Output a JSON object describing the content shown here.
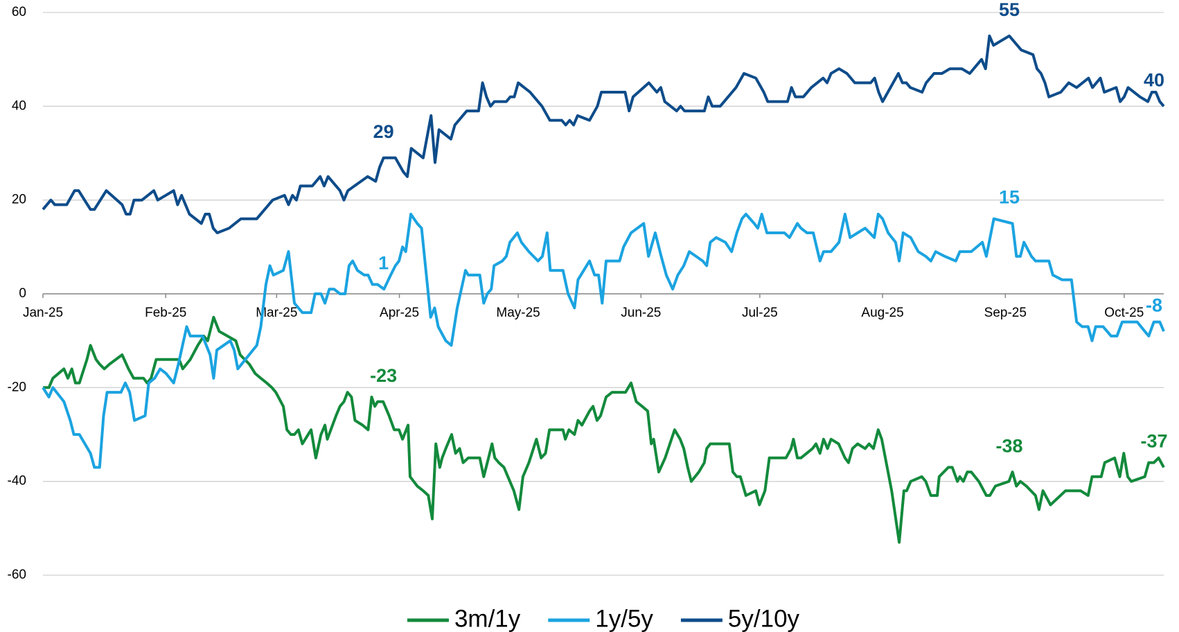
{
  "chart_data": {
    "type": "line",
    "xlim": [
      0,
      283
    ],
    "xticks": [
      {
        "value": 0,
        "label": "Jan-25"
      },
      {
        "value": 31,
        "label": "Feb-25"
      },
      {
        "value": 59,
        "label": "Mar-25"
      },
      {
        "value": 90,
        "label": "Apr-25"
      },
      {
        "value": 120,
        "label": "May-25"
      },
      {
        "value": 151,
        "label": "Jun-25"
      },
      {
        "value": 181,
        "label": "Jul-25"
      },
      {
        "value": 212,
        "label": "Aug-25"
      },
      {
        "value": 243,
        "label": "Sep-25"
      },
      {
        "value": 273,
        "label": "Oct-25"
      }
    ],
    "ylim": [
      -60,
      60
    ],
    "yticks": [
      -60,
      -40,
      -20,
      0,
      20,
      40,
      60
    ],
    "grid": true,
    "legend": "bottom",
    "series": [
      {
        "name": "3m/1y",
        "color": "#138a3c",
        "x": [
          0,
          1.5,
          2.5,
          5.3,
          6.3,
          7.3,
          8.2,
          9.2,
          11.1,
          12,
          13.4,
          14.3,
          15.5,
          16.8,
          20,
          21.6,
          22.9,
          25.4,
          26.3,
          27.3,
          28.6,
          34.4,
          35.3,
          37.2,
          39.1,
          40.6,
          41.6,
          43.1,
          44.5,
          48.7,
          49.8,
          52.1,
          53.6,
          55,
          56.5,
          57.8,
          58.8,
          60.7,
          61.6,
          62.6,
          63.5,
          64.5,
          65.5,
          67.7,
          68.9,
          70.2,
          71.2,
          71.8,
          74,
          75,
          76,
          76.9,
          77.9,
          78.8,
          80.7,
          82.1,
          83,
          83.8,
          84.5,
          85.9,
          87.4,
          88.7,
          89.9,
          90.8,
          92.2,
          92.7,
          94.5,
          96,
          97.3,
          98.3,
          99.2,
          100.2,
          100.8,
          101.7,
          103.2,
          104.2,
          105.2,
          106.1,
          107.4,
          110.3,
          111.3,
          112.2,
          113.4,
          114.1,
          115.1,
          116.4,
          117.9,
          118.9,
          120.2,
          121.2,
          122.7,
          124.6,
          125.8,
          126.9,
          127.9,
          131.3,
          131.9,
          132.8,
          134.2,
          135.1,
          136.1,
          138,
          138.9,
          139.9,
          140.8,
          142.2,
          143.7,
          147.1,
          148.5,
          149.8,
          151.3,
          152.7,
          153.6,
          154.2,
          155.5,
          157.1,
          159.5,
          160.9,
          161.8,
          162.8,
          163.7,
          165.6,
          167,
          167.6,
          168.5,
          173.3,
          174.2,
          175.2,
          176.1,
          177.5,
          180,
          180.9,
          182.3,
          183.4,
          187.6,
          188.9,
          189.5,
          190.5,
          191.4,
          194.3,
          195.2,
          196.2,
          197.1,
          198.1,
          199,
          200.9,
          202.5,
          203.4,
          204.4,
          205.7,
          207.6,
          208.6,
          209.7,
          210.9,
          211.8,
          214.3,
          216.2,
          217.4,
          218.1,
          219.1,
          221.9,
          222.9,
          224.2,
          225.8,
          226.3,
          228.6,
          229.6,
          230.9,
          231.5,
          232.4,
          233.4,
          234.4,
          236.3,
          238.2,
          239.1,
          240.5,
          243.9,
          244.8,
          245.8,
          246.8,
          248.3,
          250.6,
          251.5,
          252.5,
          254.4,
          258.2,
          262,
          263.9,
          264.9,
          267.2,
          268.1,
          270.6,
          271.9,
          272.9,
          273.9,
          274.8,
          278.2,
          279.2,
          280.5,
          281.7,
          283
        ],
        "values": [
          -20,
          -20,
          -18,
          -16,
          -18,
          -16,
          -19,
          -19,
          -14,
          -11,
          -14,
          -15,
          -16,
          -15,
          -13,
          -16,
          -18,
          -18,
          -19,
          -18,
          -14,
          -14,
          -16,
          -14,
          -11,
          -9,
          -10,
          -5,
          -8,
          -10,
          -13,
          -15,
          -17,
          -18,
          -19,
          -20,
          -21,
          -24,
          -29,
          -30,
          -30,
          -29,
          -32,
          -29,
          -35,
          -30,
          -28,
          -31,
          -26,
          -24,
          -23,
          -21,
          -22,
          -27,
          -28,
          -29,
          -22,
          -24,
          -23,
          -23,
          -26,
          -29,
          -29,
          -31,
          -28,
          -39,
          -41,
          -42,
          -43,
          -48,
          -32,
          -37,
          -35,
          -33,
          -30,
          -34,
          -33,
          -36,
          -35,
          -35,
          -39,
          -36,
          -32,
          -35,
          -36,
          -37,
          -40,
          -42,
          -46,
          -39,
          -36,
          -31,
          -35,
          -34,
          -29,
          -29,
          -31,
          -29,
          -30,
          -27,
          -28,
          -25,
          -24,
          -27,
          -26,
          -22,
          -21,
          -21,
          -19,
          -23,
          -24,
          -25,
          -32,
          -31,
          -38,
          -35,
          -29,
          -31,
          -33,
          -37,
          -40,
          -38,
          -36,
          -33,
          -32,
          -32,
          -38,
          -39,
          -39,
          -43,
          -42,
          -45,
          -42,
          -35,
          -35,
          -33,
          -31,
          -35,
          -35,
          -33,
          -32,
          -34,
          -31,
          -33,
          -31,
          -32,
          -35,
          -36,
          -33,
          -32,
          -33,
          -32,
          -33,
          -29,
          -31,
          -42,
          -53,
          -42,
          -42,
          -40,
          -39,
          -40,
          -43,
          -43,
          -39,
          -37,
          -37,
          -40,
          -39,
          -40,
          -38,
          -38,
          -40,
          -43,
          -43,
          -41,
          -40,
          -38,
          -41,
          -40,
          -41,
          -43,
          -46,
          -42,
          -45,
          -42,
          -42,
          -43,
          -39,
          -39,
          -36,
          -35,
          -39,
          -34,
          -39,
          -40,
          -39,
          -36,
          -36,
          -35,
          -37
        ],
        "labels": [
          {
            "x": 86,
            "value": -23
          },
          {
            "x": 244,
            "value": -38
          },
          {
            "x": 283,
            "value": -37
          }
        ]
      },
      {
        "name": "1y/5y",
        "color": "#1ba3e0",
        "x": [
          0,
          1.5,
          2.5,
          5.3,
          6.9,
          7.8,
          9.2,
          12,
          13,
          14.3,
          15.3,
          16.2,
          19.7,
          20.8,
          21.9,
          23.1,
          25.8,
          26.7,
          28.2,
          29.6,
          31.1,
          33,
          34.2,
          36.3,
          37.2,
          40.3,
          42.2,
          43.1,
          43.9,
          47.3,
          48.3,
          49.2,
          51.1,
          54,
          55,
          56.3,
          57.3,
          58.2,
          60.7,
          62,
          63.5,
          65.5,
          67.7,
          68.7,
          70.2,
          71.2,
          72.3,
          73.5,
          75,
          76.3,
          77.3,
          78.2,
          79.4,
          81.1,
          82.1,
          83.2,
          84.5,
          86.1,
          87.8,
          89,
          89.9,
          90.8,
          91.6,
          92.9,
          94.5,
          95.6,
          97.9,
          98.9,
          99.8,
          101.7,
          103.1,
          104.6,
          105.9,
          106.7,
          107.4,
          110.3,
          111.3,
          112.2,
          113.2,
          113.9,
          116,
          117,
          117.9,
          119.8,
          120.8,
          122.7,
          125,
          126.1,
          127.3,
          128.1,
          131.3,
          132.6,
          134.2,
          135.1,
          138,
          139.3,
          140.3,
          141.2,
          142.2,
          145.6,
          146.6,
          148.5,
          151.7,
          152.9,
          154.6,
          156.1,
          157.4,
          159,
          160.3,
          161.8,
          163.2,
          166.6,
          167.6,
          168.5,
          170,
          172.3,
          173.9,
          175.2,
          176.5,
          177.5,
          179.6,
          180.5,
          181.5,
          182.8,
          187.2,
          188.5,
          190.5,
          191.4,
          192.9,
          194.5,
          196.2,
          197.1,
          199,
          201,
          202.5,
          203.8,
          205.7,
          207.6,
          209.9,
          210.9,
          212,
          213.4,
          215.3,
          216.2,
          217.2,
          219.1,
          221,
          222.9,
          224.2,
          225.4,
          227.7,
          230.5,
          231.5,
          234.4,
          237.2,
          238.2,
          240.1,
          244.8,
          245.8,
          246.8,
          247.7,
          249.6,
          250.6,
          252.5,
          254,
          255,
          257.3,
          259.7,
          261,
          262.4,
          263.9,
          264.9,
          265.8,
          267.7,
          269.7,
          271.2,
          272.5,
          273.9,
          276.3,
          278.2,
          279.2,
          280.5,
          282,
          283
        ],
        "values": [
          -20,
          -22,
          -20,
          -23,
          -27,
          -30,
          -30,
          -34,
          -37,
          -37,
          -26,
          -21,
          -21,
          -19,
          -21,
          -27,
          -26,
          -19,
          -18,
          -16,
          -17,
          -19,
          -15,
          -7,
          -9,
          -9,
          -13,
          -18,
          -12,
          -10,
          -12,
          -16,
          -14,
          -11,
          -7,
          2,
          6,
          4,
          5,
          9,
          -2,
          -4,
          -4,
          0,
          0,
          -2,
          1,
          1,
          0,
          0,
          6,
          7,
          5,
          4,
          4,
          2,
          2,
          1,
          4,
          6,
          7,
          10,
          9,
          17,
          15,
          14,
          -5,
          -3,
          -7,
          -10,
          -11,
          -3,
          2,
          5,
          4,
          4,
          -2,
          0,
          1,
          6,
          7,
          8,
          11,
          13,
          11,
          9,
          7,
          8,
          13,
          5,
          5,
          0,
          -3,
          3,
          7,
          4,
          4,
          -2,
          7,
          7,
          10,
          13,
          15,
          8,
          13,
          8,
          4,
          1,
          4,
          6,
          9,
          7,
          6,
          11,
          12,
          11,
          9,
          13,
          16,
          17,
          15,
          14,
          17,
          13,
          13,
          12,
          15,
          14,
          13,
          13,
          7,
          9,
          9,
          11,
          17,
          12,
          13,
          14,
          12,
          17,
          16,
          13,
          11,
          7,
          13,
          12,
          9,
          8,
          7,
          9,
          8,
          7,
          9,
          9,
          11,
          8,
          16,
          15,
          8,
          8,
          11,
          8,
          7,
          7,
          7,
          4,
          3,
          3,
          -6,
          -7,
          -7,
          -10,
          -7,
          -7,
          -9,
          -9,
          -6,
          -6,
          -6,
          -8,
          -9,
          -6,
          -6,
          -8
        ],
        "labels": [
          {
            "x": 86,
            "value": 1
          },
          {
            "x": 244,
            "value": 15
          },
          {
            "x": 283,
            "value": -8
          }
        ]
      },
      {
        "name": "5y/10y",
        "color": "#0e4c8a",
        "x": [
          0,
          2,
          3,
          6,
          8,
          9,
          12,
          13,
          16,
          20,
          21,
          22,
          23,
          25,
          28,
          29,
          33,
          34,
          35,
          37,
          40,
          41,
          42,
          43,
          44,
          47,
          50,
          54,
          58,
          61,
          62,
          63,
          64,
          65,
          68,
          70,
          71,
          72,
          75,
          76,
          77,
          82,
          84,
          85,
          86,
          89,
          91,
          92,
          93,
          96,
          98,
          99,
          100,
          103,
          104,
          107,
          110,
          111,
          112,
          113,
          114,
          117,
          118,
          119,
          120,
          123,
          125,
          126,
          128,
          131,
          132,
          133,
          134,
          135,
          138,
          140,
          141,
          147,
          148,
          149,
          153,
          155,
          156,
          157,
          160,
          161,
          162,
          167,
          168,
          169,
          171,
          173,
          175,
          177,
          180,
          182,
          183,
          188,
          189,
          190,
          192,
          194,
          197,
          198,
          199,
          201,
          203,
          205,
          209,
          210,
          211,
          212,
          214,
          216,
          217,
          218,
          219,
          222,
          223,
          225,
          227,
          229,
          232,
          234,
          237,
          238,
          239,
          240,
          244,
          247,
          250,
          251,
          252,
          253,
          254,
          257,
          259,
          261,
          264,
          265,
          267,
          268,
          271,
          272,
          273,
          274,
          277,
          279,
          280,
          281,
          282,
          283
        ],
        "values": [
          18,
          20,
          19,
          19,
          22,
          22,
          18,
          18,
          22,
          19,
          17,
          17,
          20,
          20,
          22,
          20,
          22,
          19,
          21,
          17,
          15,
          17,
          17,
          14,
          13,
          14,
          16,
          16,
          20,
          21,
          19,
          21,
          20,
          23,
          23,
          25,
          23,
          25,
          22,
          20,
          22,
          25,
          24,
          27,
          29,
          29,
          26,
          25,
          31,
          29,
          38,
          28,
          35,
          33,
          36,
          39,
          39,
          45,
          42,
          40,
          41,
          41,
          42,
          42,
          45,
          43,
          41,
          40,
          37,
          37,
          36,
          37,
          36,
          38,
          37,
          40,
          43,
          43,
          39,
          42,
          45,
          43,
          44,
          41,
          39,
          40,
          39,
          39,
          42,
          40,
          40,
          42,
          44,
          47,
          46,
          43,
          41,
          41,
          44,
          42,
          42,
          44,
          46,
          45,
          47,
          48,
          47,
          45,
          45,
          46,
          43,
          41,
          44,
          47,
          45,
          45,
          44,
          43,
          45,
          47,
          47,
          48,
          48,
          47,
          50,
          48,
          55,
          53,
          55,
          52,
          51,
          48,
          47,
          45,
          42,
          43,
          45,
          44,
          46,
          44,
          46,
          43,
          44,
          41,
          42,
          44,
          42,
          41,
          43,
          43,
          41,
          40
        ],
        "labels": [
          {
            "x": 86,
            "value": 29
          },
          {
            "x": 244,
            "value": 55
          },
          {
            "x": 283,
            "value": 40
          }
        ]
      }
    ]
  }
}
